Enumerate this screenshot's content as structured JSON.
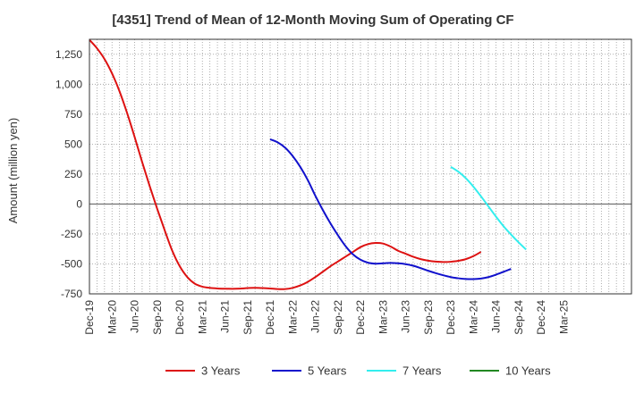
{
  "chart_data": {
    "type": "line",
    "title": "[4351]  Trend of Mean of 12-Month Moving Sum of Operating CF",
    "xlabel": "",
    "ylabel": "Amount (million yen)",
    "ylim": [
      -750,
      1375
    ],
    "yticks": [
      -750,
      -500,
      -250,
      0,
      250,
      500,
      750,
      1000,
      1250
    ],
    "ytick_labels": [
      "-750",
      "-500",
      "-250",
      "0",
      "250",
      "500",
      "750",
      "1,000",
      "1,250"
    ],
    "x_range_months": [
      0,
      72
    ],
    "xticks": [
      {
        "m": 0,
        "label": "Dec-19"
      },
      {
        "m": 3,
        "label": "Mar-20"
      },
      {
        "m": 6,
        "label": "Jun-20"
      },
      {
        "m": 9,
        "label": "Sep-20"
      },
      {
        "m": 12,
        "label": "Dec-20"
      },
      {
        "m": 15,
        "label": "Mar-21"
      },
      {
        "m": 18,
        "label": "Jun-21"
      },
      {
        "m": 21,
        "label": "Sep-21"
      },
      {
        "m": 24,
        "label": "Dec-21"
      },
      {
        "m": 27,
        "label": "Mar-22"
      },
      {
        "m": 30,
        "label": "Jun-22"
      },
      {
        "m": 33,
        "label": "Sep-22"
      },
      {
        "m": 36,
        "label": "Dec-22"
      },
      {
        "m": 39,
        "label": "Mar-23"
      },
      {
        "m": 42,
        "label": "Jun-23"
      },
      {
        "m": 45,
        "label": "Sep-23"
      },
      {
        "m": 48,
        "label": "Dec-23"
      },
      {
        "m": 51,
        "label": "Mar-24"
      },
      {
        "m": 54,
        "label": "Jun-24"
      },
      {
        "m": 57,
        "label": "Sep-24"
      },
      {
        "m": 60,
        "label": "Dec-24"
      },
      {
        "m": 63,
        "label": "Mar-25"
      }
    ],
    "grid": true,
    "legend_position": "bottom",
    "series": [
      {
        "name": "3 Years",
        "color": "#dd1111",
        "points": [
          [
            0,
            1370
          ],
          [
            1,
            1300
          ],
          [
            2,
            1210
          ],
          [
            3,
            1090
          ],
          [
            4,
            940
          ],
          [
            5,
            760
          ],
          [
            6,
            560
          ],
          [
            7,
            350
          ],
          [
            8,
            150
          ],
          [
            9,
            -40
          ],
          [
            10,
            -220
          ],
          [
            11,
            -390
          ],
          [
            12,
            -520
          ],
          [
            13,
            -610
          ],
          [
            14,
            -665
          ],
          [
            15,
            -690
          ],
          [
            16,
            -700
          ],
          [
            17,
            -705
          ],
          [
            18,
            -707
          ],
          [
            19,
            -708
          ],
          [
            20,
            -706
          ],
          [
            21,
            -702
          ],
          [
            22,
            -700
          ],
          [
            23,
            -702
          ],
          [
            24,
            -705
          ],
          [
            25,
            -710
          ],
          [
            26,
            -710
          ],
          [
            27,
            -700
          ],
          [
            28,
            -680
          ],
          [
            29,
            -650
          ],
          [
            30,
            -610
          ],
          [
            31,
            -565
          ],
          [
            32,
            -520
          ],
          [
            33,
            -480
          ],
          [
            34,
            -440
          ],
          [
            35,
            -400
          ],
          [
            36,
            -360
          ],
          [
            37,
            -335
          ],
          [
            38,
            -325
          ],
          [
            39,
            -330
          ],
          [
            40,
            -355
          ],
          [
            41,
            -390
          ],
          [
            42,
            -415
          ],
          [
            43,
            -440
          ],
          [
            44,
            -460
          ],
          [
            45,
            -473
          ],
          [
            46,
            -481
          ],
          [
            47,
            -484
          ],
          [
            48,
            -482
          ],
          [
            49,
            -474
          ],
          [
            50,
            -460
          ],
          [
            51,
            -435
          ],
          [
            52,
            -400
          ]
        ]
      },
      {
        "name": "5 Years",
        "color": "#1111cc",
        "points": [
          [
            24,
            540
          ],
          [
            25,
            515
          ],
          [
            26,
            470
          ],
          [
            27,
            400
          ],
          [
            28,
            310
          ],
          [
            29,
            200
          ],
          [
            30,
            70
          ],
          [
            31,
            -50
          ],
          [
            32,
            -160
          ],
          [
            33,
            -260
          ],
          [
            34,
            -350
          ],
          [
            35,
            -420
          ],
          [
            36,
            -465
          ],
          [
            37,
            -490
          ],
          [
            38,
            -498
          ],
          [
            39,
            -495
          ],
          [
            40,
            -492
          ],
          [
            41,
            -495
          ],
          [
            42,
            -502
          ],
          [
            43,
            -515
          ],
          [
            44,
            -535
          ],
          [
            45,
            -557
          ],
          [
            46,
            -577
          ],
          [
            47,
            -595
          ],
          [
            48,
            -610
          ],
          [
            49,
            -620
          ],
          [
            50,
            -626
          ],
          [
            51,
            -627
          ],
          [
            52,
            -622
          ],
          [
            53,
            -610
          ],
          [
            54,
            -590
          ],
          [
            55,
            -566
          ],
          [
            56,
            -542
          ]
        ]
      },
      {
        "name": "7 Years",
        "color": "#33eeee",
        "points": [
          [
            48,
            310
          ],
          [
            49,
            270
          ],
          [
            50,
            215
          ],
          [
            51,
            145
          ],
          [
            52,
            65
          ],
          [
            53,
            -20
          ],
          [
            54,
            -105
          ],
          [
            55,
            -185
          ],
          [
            56,
            -255
          ],
          [
            57,
            -320
          ],
          [
            58,
            -380
          ]
        ]
      },
      {
        "name": "10 Years",
        "color": "#228822",
        "points": []
      }
    ]
  }
}
